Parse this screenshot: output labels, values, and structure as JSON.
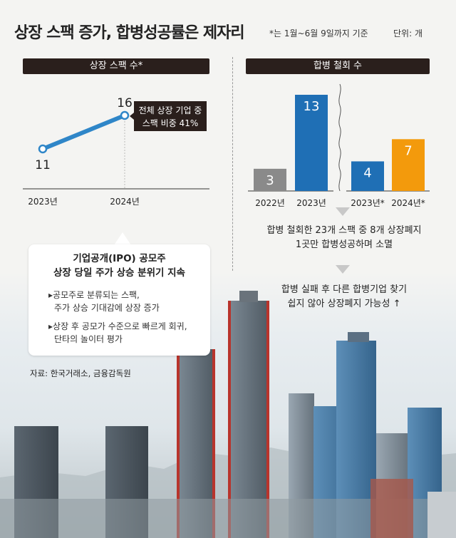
{
  "title": "상장 스팩 증가, 합병성공률은 제자리",
  "note": "*는 1월~6월 9일까지 기준",
  "unit": "단위: 개",
  "left_panel": {
    "header": "상장 스팩 수*",
    "callout_line1": "전체 상장 기업 중",
    "callout_line2": "스팩 비중 41%"
  },
  "right_panel": {
    "header": "합병 철회 수",
    "caption1_line1": "합병 철회한 23개 스팩 중 8개 상장폐지",
    "caption1_line2": "1곳만 합병성공하며 소멸",
    "caption2_line1": "합병 실패 후 다른 합병기업 찾기",
    "caption2_line2": "쉽지 않아 상장폐지 가능성 ↑"
  },
  "bubble": {
    "title_line1": "기업공개(IPO) 공모주",
    "title_line2": "상장 당일 주가 상승 분위기 지속",
    "item1_line1": "▸공모주로 분류되는 스팩,",
    "item1_line2": "주가 상승 기대감에 상장 증가",
    "item2_line1": "▸상장 후 공모가 수준으로 빠르게 회귀,",
    "item2_line2": "단타의 놀이터 평가"
  },
  "source": "자료: 한국거래소, 금융감독원",
  "colors": {
    "line": "#2f86c8",
    "bar_gray": "#8a8a8a",
    "bar_blue": "#1f6fb5",
    "bar_orange": "#f39a0c",
    "header_bg": "#2a1f1c"
  },
  "chart_data": [
    {
      "type": "line",
      "title": "상장 스팩 수*",
      "categories": [
        "2023년",
        "2024년"
      ],
      "series": [
        {
          "values": [
            11,
            16
          ]
        }
      ]
    },
    {
      "type": "bar",
      "title": "합병 철회 수",
      "categories": [
        "2022년",
        "2023년",
        "2023년*",
        "2024년*"
      ],
      "values": [
        3,
        13,
        4,
        7
      ],
      "colors": [
        "#8a8a8a",
        "#1f6fb5",
        "#1f6fb5",
        "#f39a0c"
      ]
    }
  ]
}
